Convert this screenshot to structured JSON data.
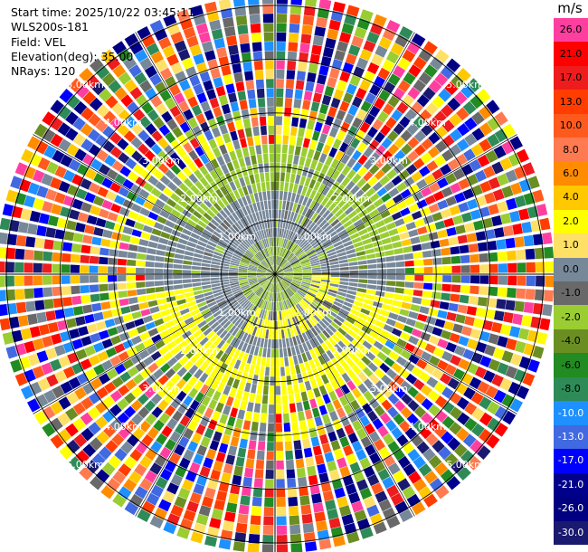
{
  "info": {
    "start_time": "Start time: 2025/10/22 03:45:11",
    "station": "WLS200s-181",
    "field": "Field: VEL",
    "elevation": "Elevation(deg): 35.00",
    "nrays": "NRays: 120"
  },
  "colorbar": {
    "unit": "m/s",
    "levels": [
      {
        "label": "26.0",
        "color": "#ff3fa0"
      },
      {
        "label": "21.0",
        "color": "#ff0000"
      },
      {
        "label": "17.0",
        "color": "#ee1c1c"
      },
      {
        "label": "13.0",
        "color": "#ff3d00"
      },
      {
        "label": "10.0",
        "color": "#ff5a1e"
      },
      {
        "label": "8.0",
        "color": "#ff7a50"
      },
      {
        "label": "6.0",
        "color": "#ff8c00"
      },
      {
        "label": "4.0",
        "color": "#ffc800"
      },
      {
        "label": "2.0",
        "color": "#ffff00"
      },
      {
        "label": "1.0",
        "color": "#ffe066"
      },
      {
        "label": "0.0",
        "color": "#778899"
      },
      {
        "label": "-1.0",
        "color": "#696969"
      },
      {
        "label": "-2.0",
        "color": "#9acd32"
      },
      {
        "label": "-4.0",
        "color": "#6b8e23"
      },
      {
        "label": "-6.0",
        "color": "#228b22"
      },
      {
        "label": "-8.0",
        "color": "#2e8b57"
      },
      {
        "label": "-10.0",
        "color": "#1e90ff"
      },
      {
        "label": "-13.0",
        "color": "#4169e1"
      },
      {
        "label": "-17.0",
        "color": "#0000ff"
      },
      {
        "label": "-21.0",
        "color": "#00008b"
      },
      {
        "label": "-26.0",
        "color": "#000080"
      },
      {
        "label": "-30.0",
        "color": "#191970"
      }
    ]
  },
  "chart_data": {
    "type": "heatmap",
    "projection": "polar PPI",
    "field": "VEL",
    "nrays": 120,
    "range_ring_labels": [
      "1.00km",
      "2.00km",
      "3.00km",
      "4.00km",
      "5.00km"
    ],
    "range_rings_km": [
      1,
      2,
      3,
      4,
      5
    ],
    "max_range_km": 5.2,
    "features": [
      {
        "range_km": [
          0,
          0.7
        ],
        "dominant_values": "-2.0 / 0.0",
        "note": "green/grey near center"
      },
      {
        "range_km": [
          0.7,
          1.6
        ],
        "dominant_values": "0.0",
        "note": "grey with yellow (2.0) arc to south-east"
      },
      {
        "range_km": [
          1.6,
          2.3
        ],
        "dominant_values": "-2.0 north, 2.0 south",
        "note": "green/yellow ring"
      },
      {
        "range_km": [
          2.3,
          3.2
        ],
        "dominant_values": "mixed, noisy"
      },
      {
        "range_km": [
          3.2,
          5.2
        ],
        "dominant_values": "random noise -30 to 26"
      }
    ]
  }
}
